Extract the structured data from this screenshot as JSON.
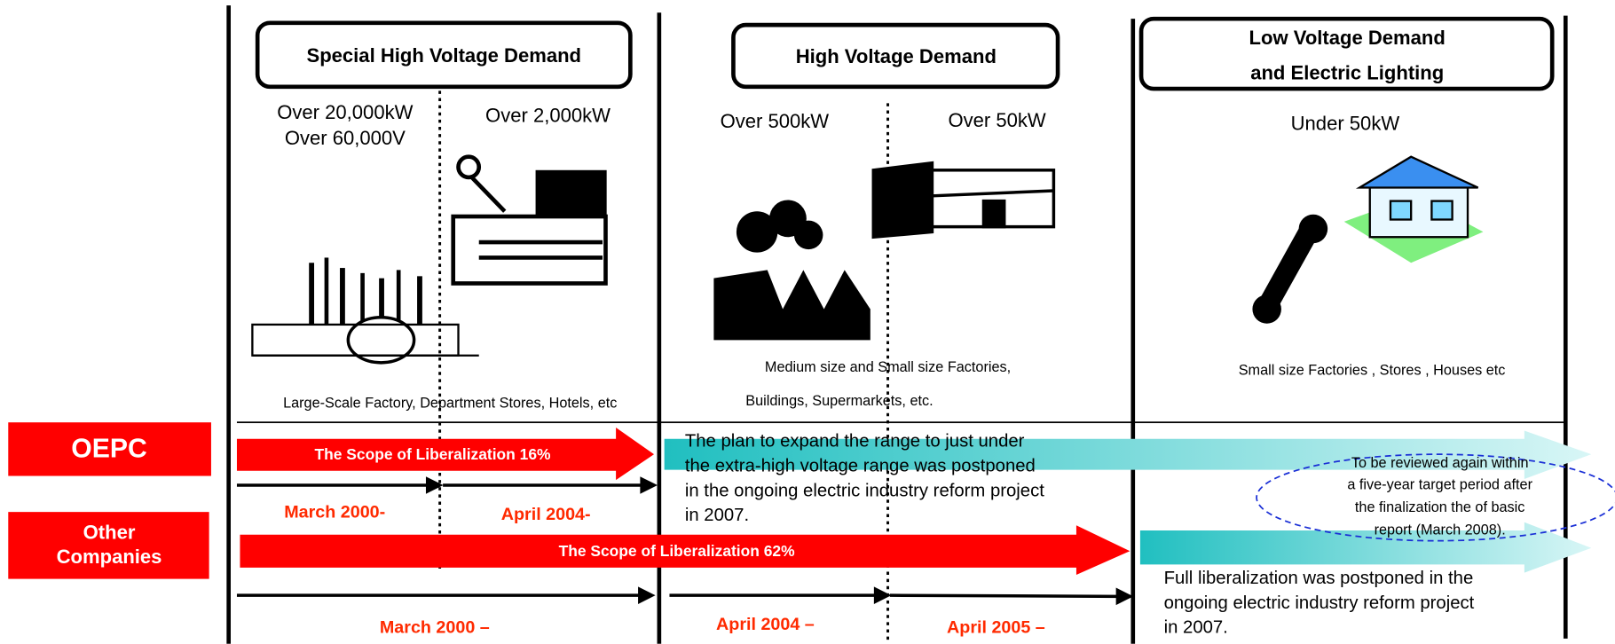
{
  "sections": [
    {
      "header": [
        "Special High Voltage Demand"
      ],
      "thresholds": [
        [
          "Over 20,000kW",
          "Over 60,000V"
        ],
        [
          "Over 2,000kW"
        ]
      ],
      "description": [
        "Large-Scale Factory, Department Stores, Hotels, etc"
      ]
    },
    {
      "header": [
        "High Voltage Demand"
      ],
      "thresholds": [
        [
          "Over 500kW"
        ],
        [
          "Over 50kW"
        ]
      ],
      "description": [
        "Medium size and Small size Factories,",
        "Buildings, Supermarkets, etc."
      ]
    },
    {
      "header": [
        "Low Voltage Demand",
        "and Electric Lighting"
      ],
      "thresholds": [
        [
          "Under 50kW"
        ]
      ],
      "description": [
        "Small size Factories , Stores ,  Houses  etc"
      ]
    }
  ],
  "rows": [
    {
      "label": [
        "OEPC"
      ],
      "scope": "The Scope of  Liberalization 16%",
      "dates": [
        "March  2000-",
        "April  2004-"
      ]
    },
    {
      "label": [
        "Other",
        "Companies"
      ],
      "scope": "The Scope of  Liberalization  62%",
      "dates": [
        "March  2000 –",
        "April  2004 –",
        "April  2005 –"
      ]
    }
  ],
  "notes": {
    "extra_high_postponed": [
      "The plan to expand the range to just under",
      "the extra-high voltage range was postponed",
      "in the ongoing electric industry reform project",
      "in 2007."
    ],
    "review": [
      "To be reviewed again within",
      "a five-year target period after",
      "the finalization the of basic",
      "report (March 2008)."
    ],
    "full_liberalization": [
      "Full liberalization was postponed in the",
      "ongoing electric industry reform project",
      "in 2007."
    ]
  }
}
